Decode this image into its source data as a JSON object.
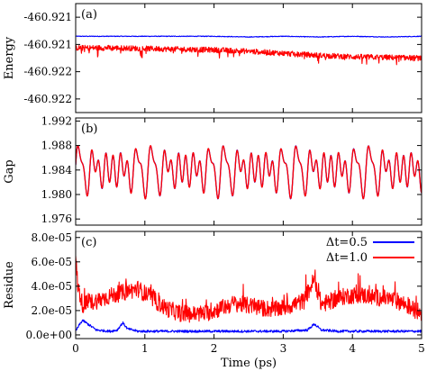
{
  "chart_data": [
    {
      "type": "line",
      "panel_label": "(a)",
      "ylabel": "Energy",
      "xlim": [
        0,
        5
      ],
      "ylim": [
        -460.9223,
        -460.9207
      ],
      "y_ticks": [
        {
          "value": -460.9209,
          "label": "-460.921"
        },
        {
          "value": -460.9213,
          "label": "-460.921"
        },
        {
          "value": -460.9217,
          "label": "-460.922"
        },
        {
          "value": -460.9221,
          "label": "-460.922"
        }
      ],
      "series": [
        {
          "name": "Δt=0.5",
          "color": "#0000ff",
          "x": [
            0,
            0.5,
            1,
            1.5,
            2,
            2.5,
            3,
            3.5,
            4,
            4.5,
            5
          ],
          "y": [
            -460.92118,
            -460.92118,
            -460.92118,
            -460.92118,
            -460.92118,
            -460.92119,
            -460.92118,
            -460.92119,
            -460.92118,
            -460.92119,
            -460.92118
          ],
          "noise": 5e-06
        },
        {
          "name": "Δt=1.0",
          "color": "#ff0000",
          "x": [
            0,
            0.5,
            1,
            1.5,
            2,
            2.5,
            3,
            3.5,
            4,
            4.5,
            5
          ],
          "y": [
            -460.92135,
            -460.92135,
            -460.92136,
            -460.92137,
            -460.92138,
            -460.9214,
            -460.92143,
            -460.92146,
            -460.92148,
            -460.92149,
            -460.9215
          ],
          "noise": 4e-05
        }
      ]
    },
    {
      "type": "line",
      "panel_label": "(b)",
      "ylabel": "Gap",
      "xlim": [
        0,
        5
      ],
      "ylim": [
        1.975,
        1.9925
      ],
      "y_ticks": [
        {
          "value": 1.976,
          "label": "1.976"
        },
        {
          "value": 1.98,
          "label": "1.980"
        },
        {
          "value": 1.984,
          "label": "1.984"
        },
        {
          "value": 1.988,
          "label": "1.988"
        },
        {
          "value": 1.992,
          "label": "1.992"
        }
      ],
      "oscillation": {
        "center": 1.9841,
        "amplitude_primary": 0.0038,
        "amplitude_secondary": 0.0026,
        "period_ps": 0.21,
        "beat_period_ps": 1.05
      },
      "series": [
        {
          "name": "Δt=0.5",
          "color": "#0000ff"
        },
        {
          "name": "Δt=1.0",
          "color": "#ff0000"
        }
      ]
    },
    {
      "type": "line",
      "panel_label": "(c)",
      "ylabel": "Residue",
      "xlabel": "Time (ps)",
      "xlim": [
        0,
        5
      ],
      "ylim": [
        -3e-06,
        8.5e-05
      ],
      "x_ticks": [
        {
          "value": 0,
          "label": "0"
        },
        {
          "value": 1,
          "label": "1"
        },
        {
          "value": 2,
          "label": "2"
        },
        {
          "value": 3,
          "label": "3"
        },
        {
          "value": 4,
          "label": "4"
        },
        {
          "value": 5,
          "label": "5"
        }
      ],
      "y_ticks": [
        {
          "value": 0,
          "label": "0.0e+00"
        },
        {
          "value": 2e-05,
          "label": "2.0e-05"
        },
        {
          "value": 4e-05,
          "label": "4.0e-05"
        },
        {
          "value": 6e-05,
          "label": "6.0e-05"
        },
        {
          "value": 8e-05,
          "label": "8.0e-05"
        }
      ],
      "legend": {
        "position": "top-right"
      },
      "series": [
        {
          "name": "Δt=0.5",
          "color": "#0000ff",
          "x": [
            0,
            0.05,
            0.1,
            0.2,
            0.3,
            0.5,
            0.6,
            0.68,
            0.75,
            0.9,
            1.2,
            1.6,
            2,
            2.5,
            3,
            3.35,
            3.45,
            3.55,
            3.8,
            4.2,
            4.6,
            5
          ],
          "y": [
            3e-06,
            8e-06,
            1.2e-05,
            8e-06,
            4e-06,
            3e-06,
            4e-06,
            1e-05,
            5e-06,
            3e-06,
            3e-06,
            3e-06,
            3e-06,
            3e-06,
            3e-06,
            4e-06,
            9e-06,
            4e-06,
            3e-06,
            3e-06,
            3e-06,
            3e-06
          ],
          "noise": 1e-06
        },
        {
          "name": "Δt=1.0",
          "color": "#ff0000",
          "x": [
            0,
            0.03,
            0.1,
            0.3,
            0.5,
            0.7,
            0.9,
            1.1,
            1.3,
            1.5,
            1.7,
            1.9,
            2.1,
            2.3,
            2.5,
            2.7,
            2.9,
            3.1,
            3.3,
            3.45,
            3.55,
            3.7,
            3.9,
            4.1,
            4.3,
            4.5,
            4.7,
            4.85,
            5
          ],
          "y": [
            6.5e-05,
            4e-05,
            2.5e-05,
            2.8e-05,
            3.2e-05,
            3.5e-05,
            3.8e-05,
            3e-05,
            2.2e-05,
            1.8e-05,
            1.7e-05,
            1.8e-05,
            2.2e-05,
            2.6e-05,
            2.4e-05,
            2.2e-05,
            2.1e-05,
            2.4e-05,
            2.8e-05,
            4.6e-05,
            2.5e-05,
            2.8e-05,
            3.2e-05,
            3.3e-05,
            3.1e-05,
            3e-05,
            2.7e-05,
            2.2e-05,
            1.8e-05
          ],
          "noise": 7e-06
        }
      ]
    }
  ]
}
